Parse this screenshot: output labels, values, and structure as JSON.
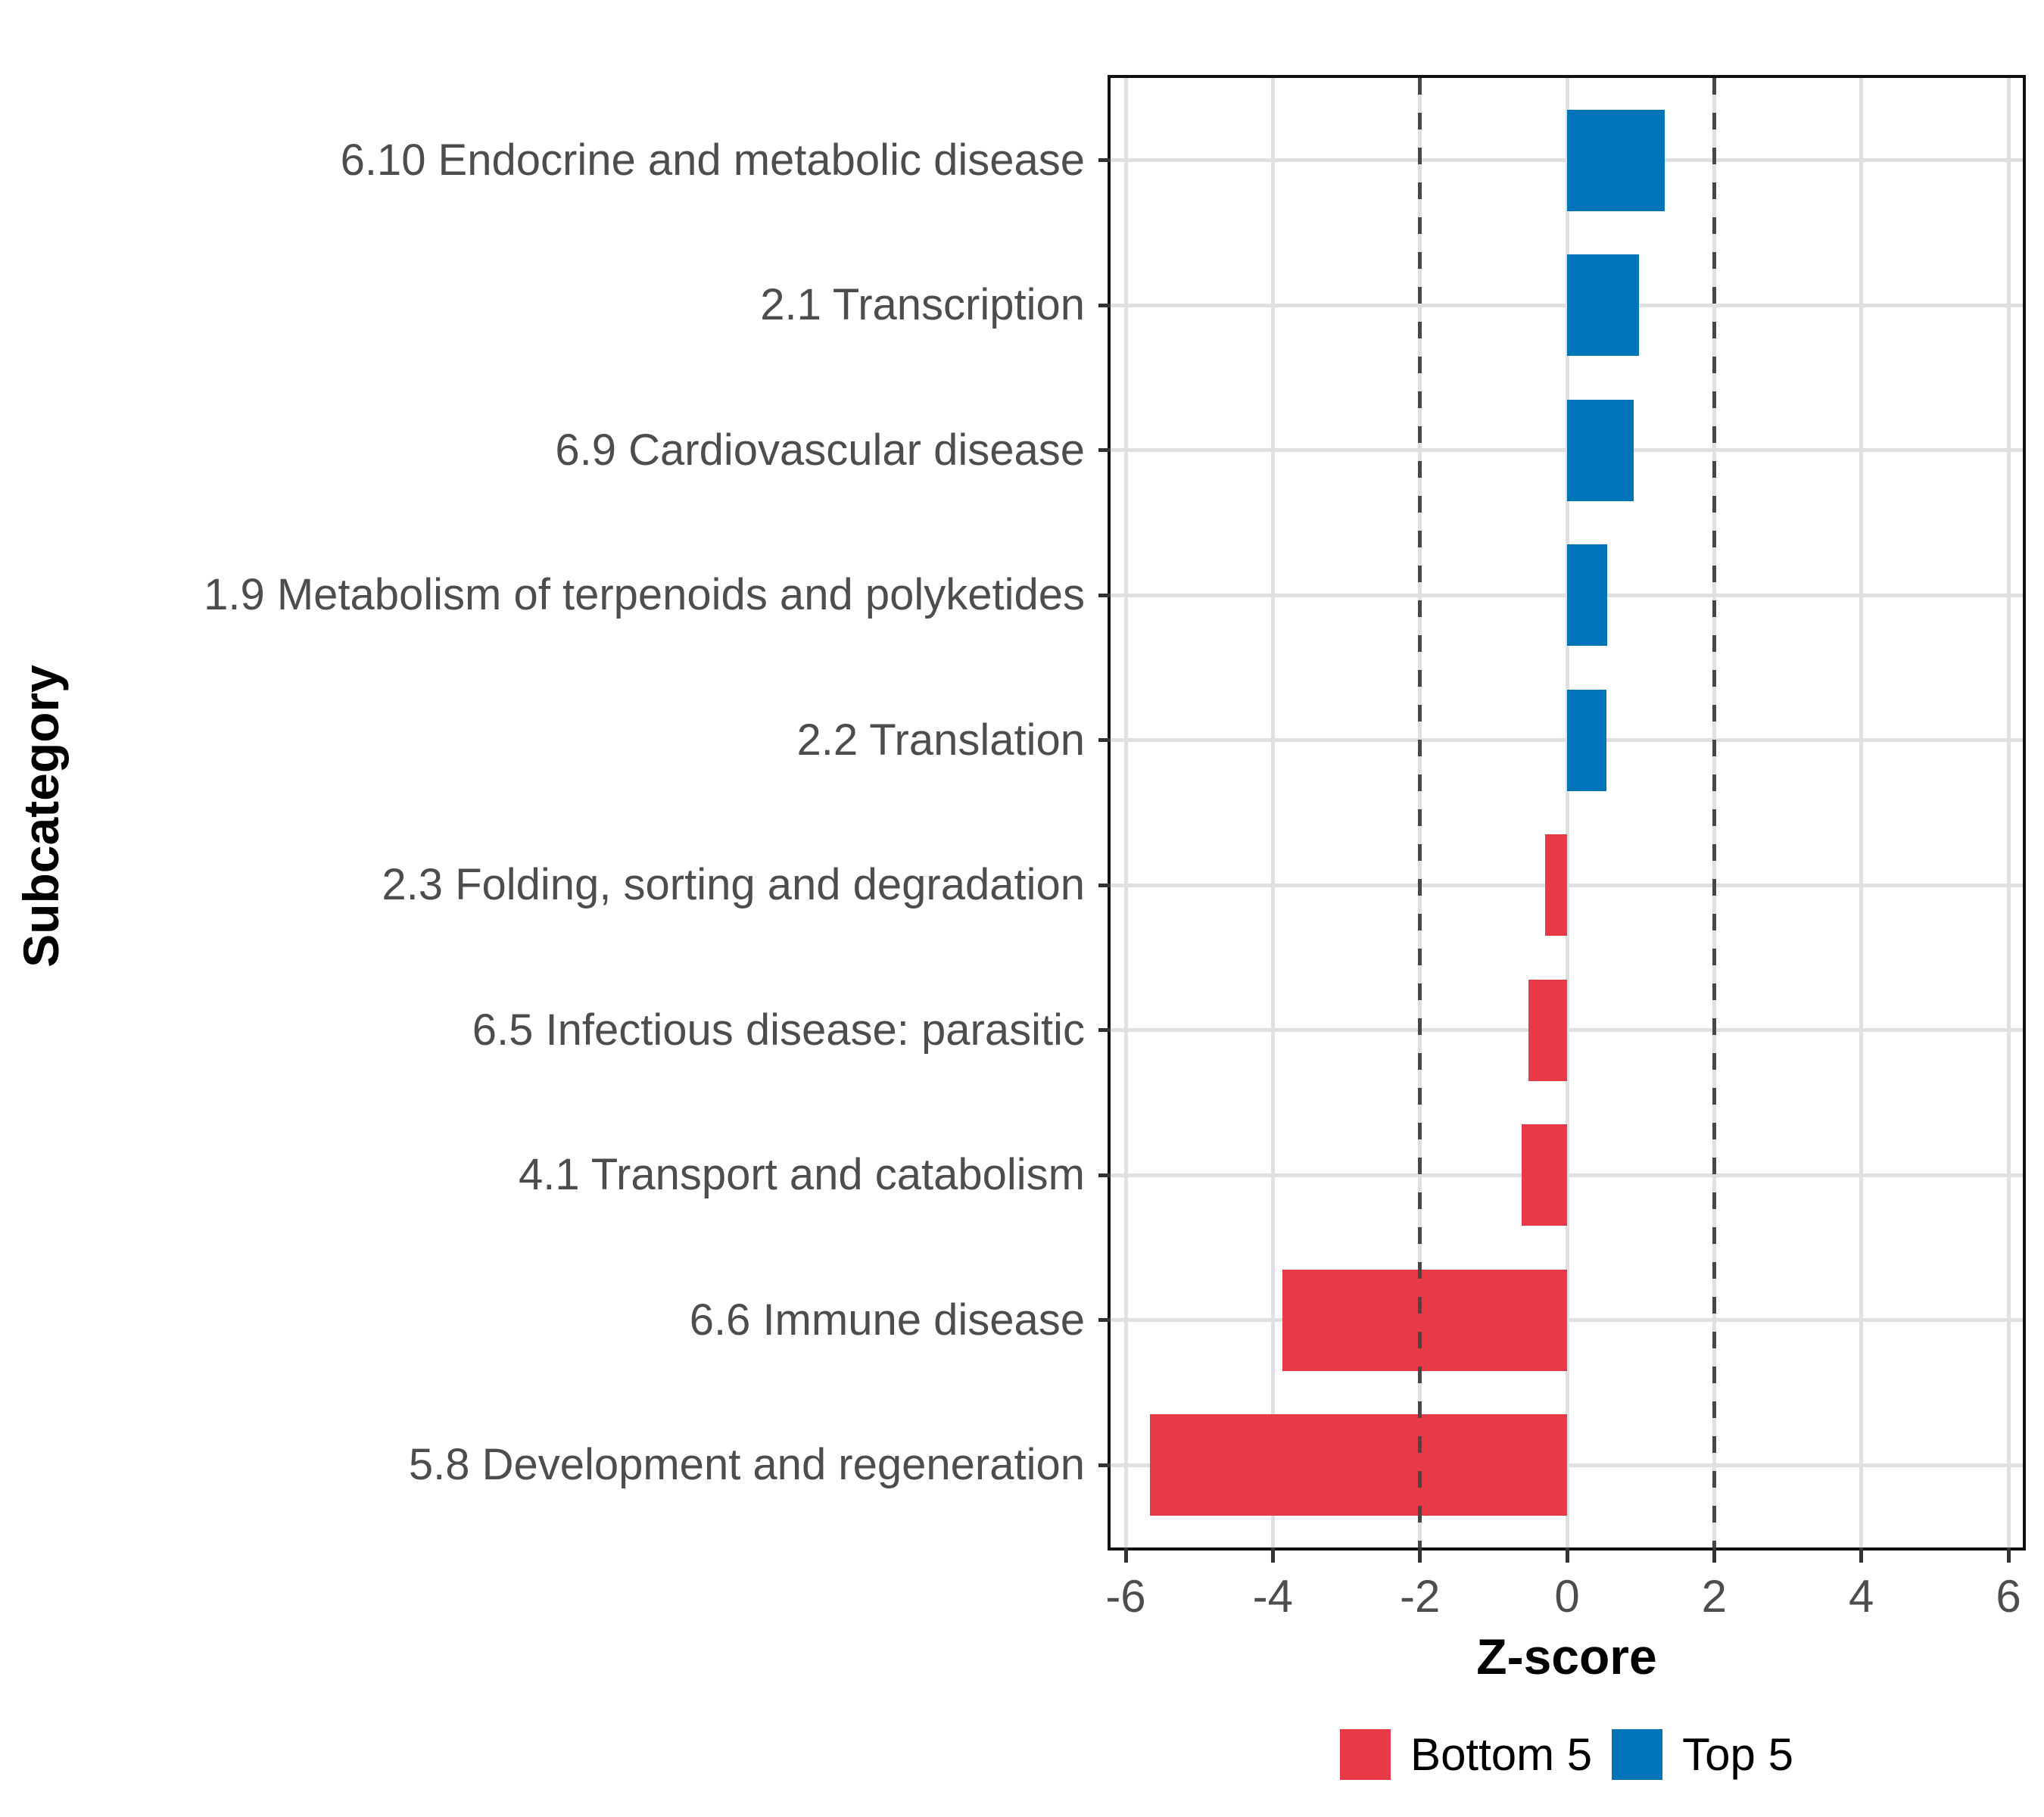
{
  "chart_data": {
    "type": "bar",
    "orientation": "horizontal",
    "title": "",
    "xlabel": "Z-score",
    "ylabel": "Subcategory",
    "xlim": [
      -6.25,
      6.2
    ],
    "x_ticks": [
      -6,
      -4,
      -2,
      0,
      2,
      4,
      6
    ],
    "x_tick_labels": [
      "-6",
      "-4",
      "-2",
      "0",
      "2",
      "4",
      "6"
    ],
    "reference_lines_x": [
      -2,
      2
    ],
    "grid": true,
    "categories": [
      "6.10 Endocrine and metabolic disease",
      "2.1 Transcription",
      "6.9 Cardiovascular disease",
      "1.9 Metabolism of terpenoids and polyketides",
      "2.2 Translation",
      "2.3 Folding, sorting and degradation",
      "6.5 Infectious disease: parasitic",
      "4.1 Transport and catabolism",
      "6.6 Immune disease",
      "5.8 Development and regeneration"
    ],
    "values": [
      1.33,
      0.98,
      0.91,
      0.55,
      0.54,
      -0.3,
      -0.53,
      -0.62,
      -3.87,
      -5.67
    ],
    "groups": [
      "Top 5",
      "Top 5",
      "Top 5",
      "Top 5",
      "Top 5",
      "Bottom 5",
      "Bottom 5",
      "Bottom 5",
      "Bottom 5",
      "Bottom 5"
    ],
    "colors": {
      "Top 5": "#0074B8",
      "Bottom 5": "#E83946"
    },
    "gridline_color": "#E0E0E0",
    "reference_line_color": "#474747",
    "legend": {
      "position": "bottom",
      "items": [
        {
          "label": "Bottom 5",
          "color": "#E83946"
        },
        {
          "label": "Top 5",
          "color": "#0074B8"
        }
      ]
    }
  }
}
